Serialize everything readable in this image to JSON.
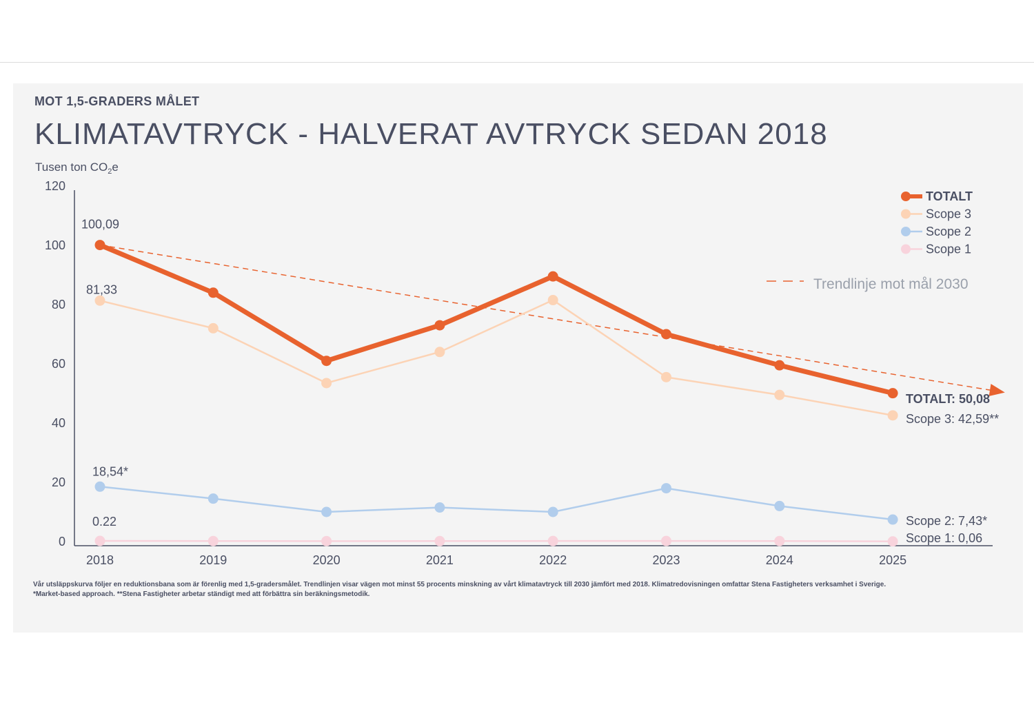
{
  "header": {
    "subtitle": "MOT 1,5-GRADERS MÅLET",
    "title": "KLIMATAVTRYCK - HALVERAT AVTRYCK SEDAN 2018",
    "unit_prefix": "Tusen ton CO",
    "unit_sub": "2",
    "unit_suffix": "e"
  },
  "footnote": {
    "line1": "Vår utsläppskurva följer en reduktionsbana som är förenlig med 1,5-gradersmålet. Trendlinjen visar vägen mot minst 55 procents minskning av vårt klimatavtryck till 2030 jämfört med 2018. Klimatredovisningen omfattar Stena Fastigheters verksamhet i Sverige.",
    "line2": "*Market-based approach. **Stena Fastigheter arbetar ständigt med att förbättra sin beräkningsmetodik."
  },
  "chart_data": {
    "type": "line",
    "x": [
      "2018",
      "2019",
      "2020",
      "2021",
      "2022",
      "2023",
      "2024",
      "2025"
    ],
    "ylim": [
      0,
      120
    ],
    "yticks": [
      "0",
      "20",
      "40",
      "60",
      "80",
      "100",
      "120"
    ],
    "grid": false,
    "legend_position": "top-right",
    "series": [
      {
        "name": "TOTALT",
        "color": "#e8622e",
        "values": [
          100.09,
          84,
          61,
          73,
          89.5,
          70,
          59.5,
          50.08
        ],
        "start_label": "100,09",
        "end_label": "TOTALT: 50,08"
      },
      {
        "name": "Scope 3",
        "color": "#fcd3b5",
        "values": [
          81.33,
          72,
          53.5,
          64,
          81.5,
          55.5,
          49.5,
          42.59
        ],
        "start_label": "81,33",
        "end_label": "Scope 3: 42,59**"
      },
      {
        "name": "Scope 2",
        "color": "#b1cdec",
        "values": [
          18.54,
          14.5,
          10,
          11.5,
          10,
          18,
          12,
          7.43
        ],
        "start_label": "18,54*",
        "end_label": "Scope 2: 7,43*"
      },
      {
        "name": "Scope 1",
        "color": "#f8d3dc",
        "values": [
          0.22,
          0.18,
          0.15,
          0.17,
          0.19,
          0.2,
          0.18,
          0.06
        ],
        "start_label": "0.22",
        "end_label": "Scope 1: 0,06"
      }
    ],
    "trendline": {
      "label": "Trendlinje mot mål 2030",
      "color": "#e8622e",
      "from": [
        "2018",
        100.09
      ],
      "to_value_at_axis_end": 51
    }
  }
}
